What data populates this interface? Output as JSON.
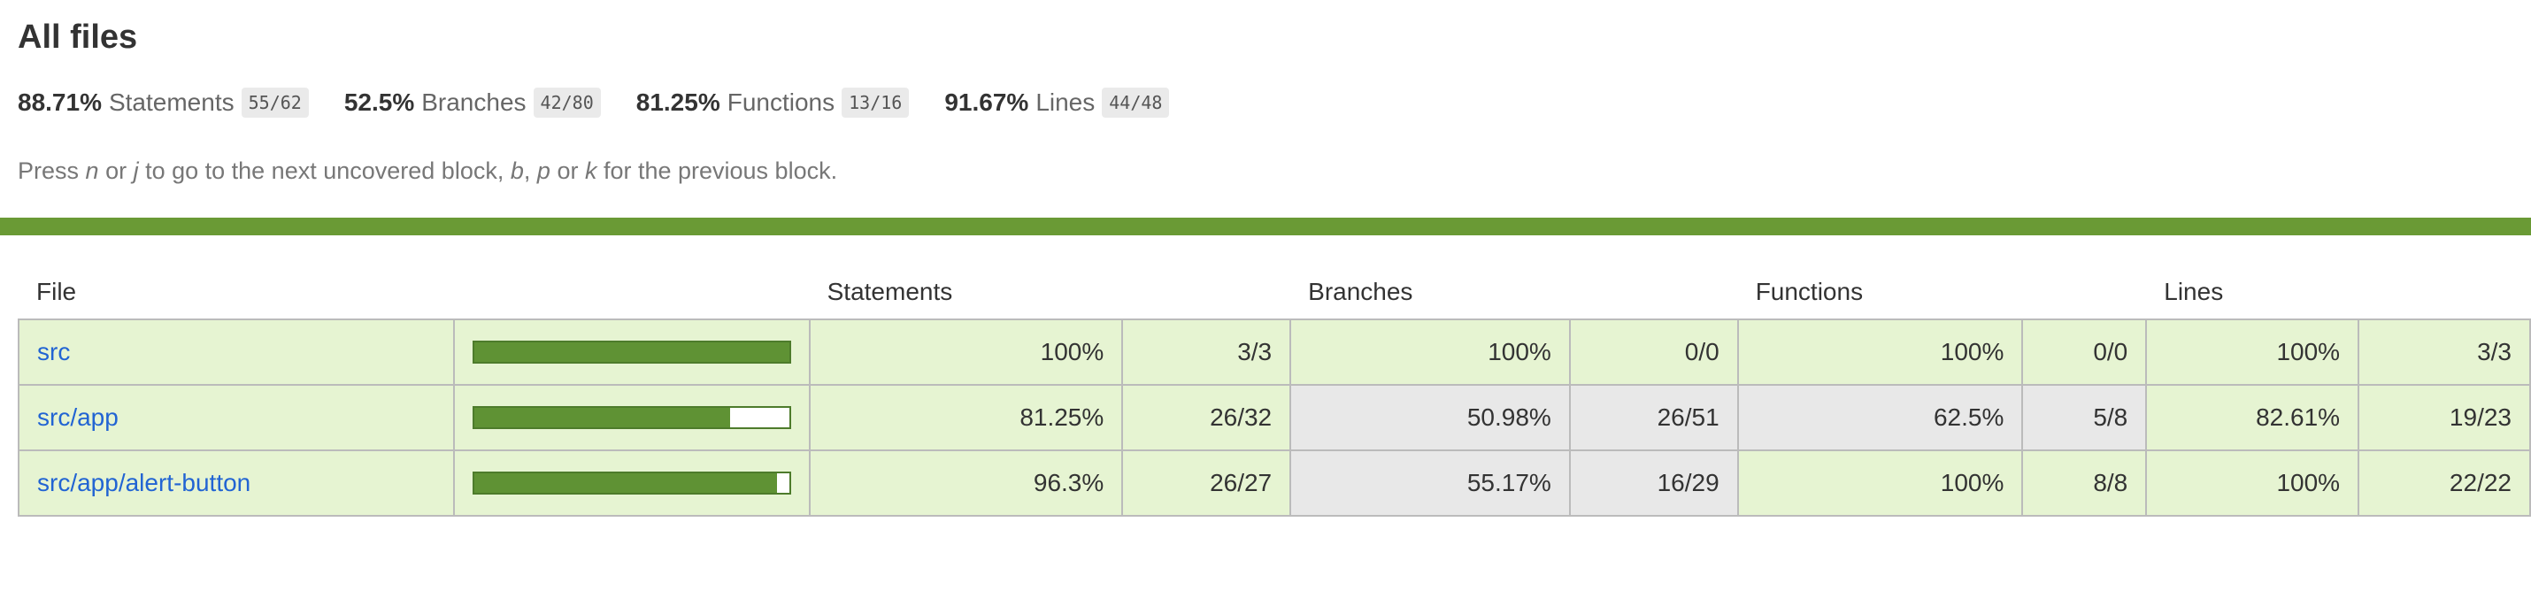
{
  "title": "All files",
  "summary": [
    {
      "pct": "88.71%",
      "label": "Statements",
      "fraction": "55/62"
    },
    {
      "pct": "52.5%",
      "label": "Branches",
      "fraction": "42/80"
    },
    {
      "pct": "81.25%",
      "label": "Functions",
      "fraction": "13/16"
    },
    {
      "pct": "91.67%",
      "label": "Lines",
      "fraction": "44/48"
    }
  ],
  "hint_parts": [
    "Press ",
    "n",
    " or ",
    "j",
    " to go to the next uncovered block, ",
    "b",
    ", ",
    "p",
    " or ",
    "k",
    " for the previous block."
  ],
  "colors": {
    "status_line": "#6a9a35",
    "high_bg": "#e6f4d2",
    "medium_bg": "#e8e8e8",
    "bar_fill": "#5f9234"
  },
  "table": {
    "headers": [
      "File",
      "",
      "Statements",
      "",
      "Branches",
      "",
      "Functions",
      "",
      "Lines",
      ""
    ],
    "rows": [
      {
        "file": "src",
        "coverage": 1.0,
        "statements": {
          "pct": "100%",
          "frac": "3/3",
          "level": "high"
        },
        "branches": {
          "pct": "100%",
          "frac": "0/0",
          "level": "high"
        },
        "functions": {
          "pct": "100%",
          "frac": "0/0",
          "level": "high"
        },
        "lines": {
          "pct": "100%",
          "frac": "3/3",
          "level": "high"
        }
      },
      {
        "file": "src/app",
        "coverage": 0.8125,
        "statements": {
          "pct": "81.25%",
          "frac": "26/32",
          "level": "high"
        },
        "branches": {
          "pct": "50.98%",
          "frac": "26/51",
          "level": "medium"
        },
        "functions": {
          "pct": "62.5%",
          "frac": "5/8",
          "level": "medium"
        },
        "lines": {
          "pct": "82.61%",
          "frac": "19/23",
          "level": "high"
        }
      },
      {
        "file": "src/app/alert-button",
        "coverage": 0.963,
        "statements": {
          "pct": "96.3%",
          "frac": "26/27",
          "level": "high"
        },
        "branches": {
          "pct": "55.17%",
          "frac": "16/29",
          "level": "medium"
        },
        "functions": {
          "pct": "100%",
          "frac": "8/8",
          "level": "high"
        },
        "lines": {
          "pct": "100%",
          "frac": "22/22",
          "level": "high"
        }
      }
    ]
  }
}
